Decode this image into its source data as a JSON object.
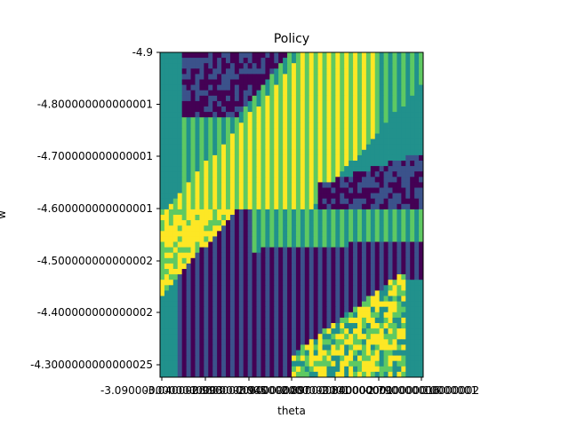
{
  "chart_data": {
    "type": "heatmap",
    "title": "Policy",
    "xlabel": "theta",
    "ylabel": "w",
    "colormap": "viridis",
    "x_tick_labels": [
      "-3.0900000000000003",
      "-3.0400000000000005",
      "-2.9900000000000007",
      "-2.940000000000001",
      "-2.890000000000001",
      "-2.8400000000000016",
      "-2.790000000000002"
    ],
    "x_tick_overflow_tail": "10000001",
    "y_tick_labels": [
      "-4.9",
      "-4.800000000000001",
      "-4.700000000000001",
      "-4.600000000000001",
      "-4.500000000000002",
      "-4.400000000000002",
      "-4.3000000000000025"
    ],
    "grid": false,
    "legend": "none",
    "colors": {
      "dark_purple": "#440154",
      "indigo": "#3b528b",
      "teal": "#21918c",
      "green": "#5ec962",
      "yellow": "#fde725"
    }
  }
}
